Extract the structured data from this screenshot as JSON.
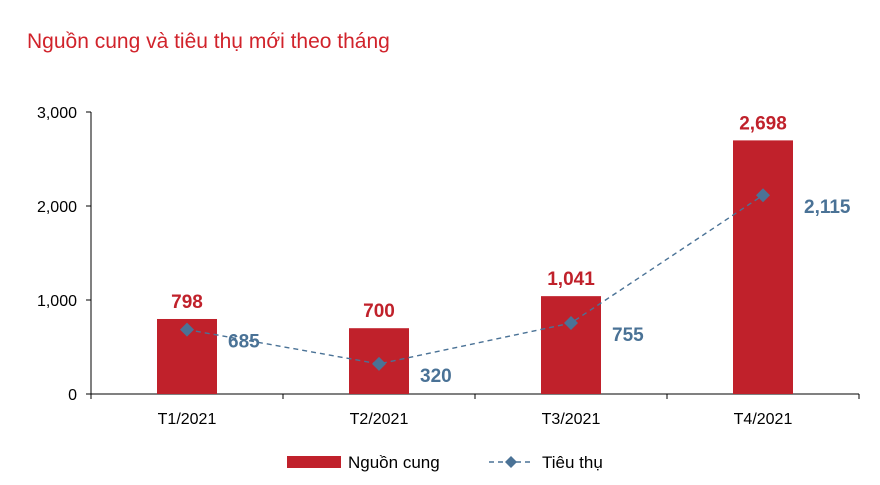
{
  "colors": {
    "bar": "#c0212b",
    "line": "#4a7296",
    "title": "#d1232b"
  },
  "chart_data": {
    "type": "bar",
    "title": "Nguồn cung và tiêu thụ mới theo tháng",
    "categories": [
      "T1/2021",
      "T2/2021",
      "T3/2021",
      "T4/2021"
    ],
    "ylim": [
      0,
      3000
    ],
    "yticks": [
      "0",
      "1,000",
      "2,000",
      "3,000"
    ],
    "ytick_values": [
      0,
      1000,
      2000,
      3000
    ],
    "grid": false,
    "legend_position": "bottom",
    "series": [
      {
        "name": "Nguồn cung",
        "kind": "bar",
        "values": [
          798,
          700,
          1041,
          2698
        ],
        "labels": [
          "798",
          "700",
          "1,041",
          "2,698"
        ]
      },
      {
        "name": "Tiêu thụ",
        "kind": "line",
        "style": "dashed",
        "marker": "diamond",
        "values": [
          685,
          320,
          755,
          2115
        ],
        "labels": [
          "685",
          "320",
          "755",
          "2,115"
        ]
      }
    ]
  }
}
